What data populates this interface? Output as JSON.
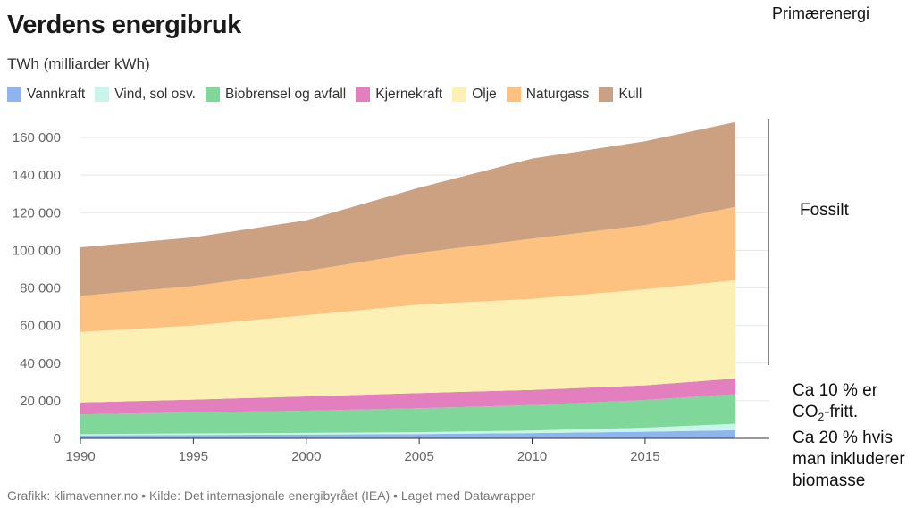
{
  "header": {
    "title": "Verdens energibruk",
    "subtitle": "TWh (milliarder kWh)"
  },
  "source": "Grafikk: klimavenner.no • Kilde: Det internasjonale energibyrået (IEA) • Laget med Datawrapper",
  "annotations": {
    "primary": "Primærenergi",
    "fossil": "Fossilt",
    "co2_line1": "Ca 10 % er",
    "co2_line2_pre": "CO",
    "co2_line2_sub": "2",
    "co2_line2_post": "-fritt.",
    "co2_line3": "Ca 20 % hvis",
    "co2_line4": "man inkluderer",
    "co2_line5": "biomasse"
  },
  "chart_data": {
    "type": "area",
    "stacked": true,
    "title": "Verdens energibruk",
    "ylabel": "TWh (milliarder kWh)",
    "x": [
      1990,
      1995,
      2000,
      2005,
      2010,
      2015,
      2019
    ],
    "xticks": [
      "1990",
      "1995",
      "2000",
      "2005",
      "2010",
      "2015"
    ],
    "ylim": [
      0,
      170000
    ],
    "yticks": [
      0,
      20000,
      40000,
      60000,
      80000,
      100000,
      120000,
      140000,
      160000
    ],
    "ytick_labels": [
      "0",
      "20 000",
      "40 000",
      "60 000",
      "80 000",
      "100 000",
      "120 000",
      "140 000",
      "160 000"
    ],
    "grid": true,
    "legend": "top",
    "series": [
      {
        "name": "Vannkraft",
        "color": "#8fb5f0",
        "values": [
          1500,
          1800,
          2000,
          2300,
          2800,
          3500,
          4300
        ]
      },
      {
        "name": "Vind, sol osv.",
        "color": "#c8f5ec",
        "values": [
          700,
          800,
          900,
          1000,
          1400,
          2200,
          3500
        ]
      },
      {
        "name": "Biobrensel og avfall",
        "color": "#7fd79a",
        "values": [
          10500,
          11300,
          11800,
          12700,
          13500,
          14700,
          15700
        ]
      },
      {
        "name": "Kjernekraft",
        "color": "#e47fbf",
        "values": [
          6400,
          6700,
          7600,
          8100,
          8100,
          7800,
          8300
        ]
      },
      {
        "name": "Olje",
        "color": "#fdf0b5",
        "values": [
          37500,
          39400,
          43200,
          47100,
          48400,
          51100,
          52300
        ]
      },
      {
        "name": "Naturgass",
        "color": "#fdc27f",
        "values": [
          19200,
          21000,
          23600,
          27500,
          32000,
          34100,
          39000
        ]
      },
      {
        "name": "Kull",
        "color": "#cca181",
        "values": [
          25800,
          25900,
          26900,
          34600,
          42600,
          44600,
          45100
        ]
      }
    ]
  }
}
